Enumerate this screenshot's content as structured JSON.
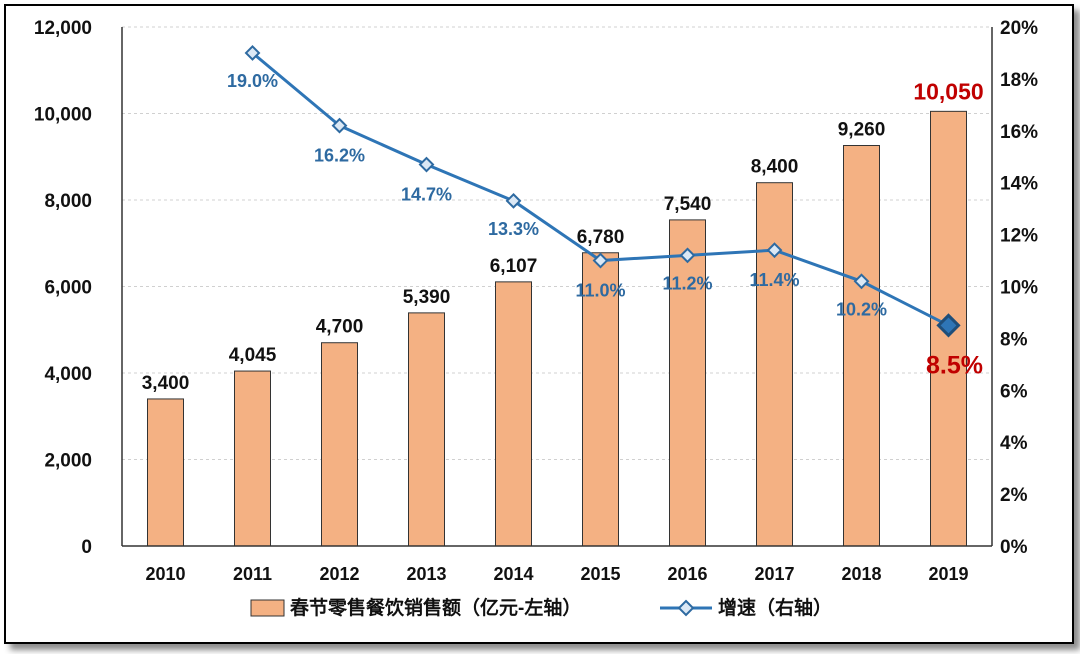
{
  "chart_data": {
    "type": "bar+line",
    "categories": [
      "2010",
      "2011",
      "2012",
      "2013",
      "2014",
      "2015",
      "2016",
      "2017",
      "2018",
      "2019"
    ],
    "series": [
      {
        "name": "春节零售餐饮销售额（亿元-左轴）",
        "type": "bar",
        "axis": "left",
        "values": [
          3400,
          4045,
          4700,
          5390,
          6107,
          6780,
          7540,
          8400,
          9260,
          10050
        ],
        "labels": [
          "3,400",
          "4,045",
          "4,700",
          "5,390",
          "6,107",
          "6,780",
          "7,540",
          "8,400",
          "9,260",
          "10,050"
        ],
        "color": "#f4b183"
      },
      {
        "name": "增速（右轴）",
        "type": "line",
        "axis": "right",
        "values": [
          null,
          19.0,
          16.2,
          14.7,
          13.3,
          11.0,
          11.2,
          11.4,
          10.2,
          8.5
        ],
        "labels": [
          "",
          "19.0%",
          "16.2%",
          "14.7%",
          "13.3%",
          "11.0%",
          "11.2%",
          "11.4%",
          "10.2%",
          "8.5%"
        ],
        "color": "#2e75b6"
      }
    ],
    "y_left": {
      "min": 0,
      "max": 12000,
      "ticks": [
        "0",
        "2,000",
        "4,000",
        "6,000",
        "8,000",
        "10,000",
        "12,000"
      ]
    },
    "y_right": {
      "min": 0,
      "max": 20,
      "ticks": [
        "0%",
        "2%",
        "4%",
        "6%",
        "8%",
        "10%",
        "12%",
        "14%",
        "16%",
        "18%",
        "20%"
      ]
    },
    "highlight_color": "#c00000",
    "grid": true,
    "legend_position": "bottom"
  }
}
